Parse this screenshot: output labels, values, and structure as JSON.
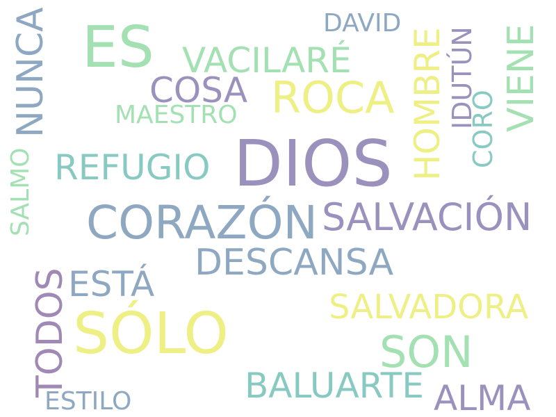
{
  "palette": {
    "purple": "#9b91bd",
    "mint": "#a3e0b2",
    "yellow": "#eef085",
    "steel": "#8fa8c2",
    "teal": "#88c9c2",
    "plum": "#a08ab5"
  },
  "words": {
    "dios": "DIOS",
    "es": "ES",
    "solo": "SÓLO",
    "corazon": "CORAZÓN",
    "salvacion": "SALVACIÓN",
    "roca": "ROCA",
    "son": "SON",
    "descansa": "DESCANSA",
    "salvadora": "SALVADORA",
    "baluarte": "BALUARTE",
    "vacilare": "VACILARÉ",
    "cosa": "COSA",
    "refugio": "REFUGIO",
    "esta": "ESTÁ",
    "alma": "ALMA",
    "david": "DAVID",
    "maestro": "MAESTRO",
    "estilo": "ESTILO",
    "nunca": "NUNCA",
    "hombre": "HOMBRE",
    "idutun": "IDUTÚN",
    "viene": "VIENE",
    "coro": "CORO",
    "salmo": "SALMO",
    "todos": "TODOS"
  }
}
